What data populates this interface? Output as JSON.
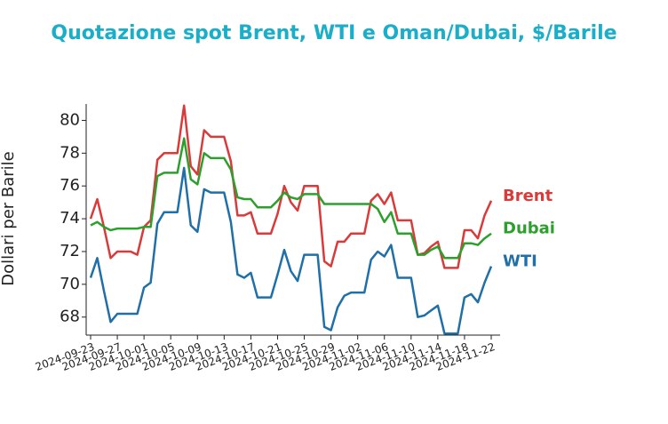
{
  "chart_data": {
    "type": "line",
    "title": "Quotazione spot Brent, WTI e Oman/Dubai, $/Barile",
    "y_label": "Dollari per Barile",
    "x": [
      "2024-09-23",
      "2024-09-24",
      "2024-09-25",
      "2024-09-26",
      "2024-09-27",
      "2024-09-28",
      "2024-09-29",
      "2024-09-30",
      "2024-10-01",
      "2024-10-02",
      "2024-10-03",
      "2024-10-04",
      "2024-10-05",
      "2024-10-06",
      "2024-10-07",
      "2024-10-08",
      "2024-10-09",
      "2024-10-10",
      "2024-10-11",
      "2024-10-12",
      "2024-10-13",
      "2024-10-14",
      "2024-10-15",
      "2024-10-16",
      "2024-10-17",
      "2024-10-18",
      "2024-10-19",
      "2024-10-20",
      "2024-10-21",
      "2024-10-22",
      "2024-10-23",
      "2024-10-24",
      "2024-10-25",
      "2024-10-26",
      "2024-10-27",
      "2024-10-28",
      "2024-10-29",
      "2024-10-30",
      "2024-10-31",
      "2024-11-01",
      "2024-11-02",
      "2024-11-03",
      "2024-11-04",
      "2024-11-05",
      "2024-11-06",
      "2024-11-07",
      "2024-11-08",
      "2024-11-09",
      "2024-11-10",
      "2024-11-11",
      "2024-11-12",
      "2024-11-13",
      "2024-11-14",
      "2024-11-15",
      "2024-11-16",
      "2024-11-17",
      "2024-11-18",
      "2024-11-19",
      "2024-11-20",
      "2024-11-21",
      "2024-11-22"
    ],
    "xticks": [
      "2024-09-23",
      "2024-09-27",
      "2024-10-01",
      "2024-10-05",
      "2024-10-09",
      "2024-10-13",
      "2024-10-17",
      "2024-10-21",
      "2024-10-25",
      "2024-10-29",
      "2024-11-02",
      "2024-11-06",
      "2024-11-10",
      "2024-11-14",
      "2024-11-18",
      "2024-11-22"
    ],
    "ylim": [
      66.9,
      81.0
    ],
    "yticks": [
      68,
      70,
      72,
      74,
      76,
      78,
      80
    ],
    "grid": false,
    "legend": "end-labels",
    "series": [
      {
        "name": "Brent",
        "color": "#d93a3a",
        "values": [
          74.0,
          75.2,
          73.5,
          71.6,
          72.0,
          72.0,
          72.0,
          71.8,
          73.5,
          73.9,
          77.6,
          78.0,
          78.0,
          78.0,
          80.9,
          77.2,
          76.7,
          79.4,
          79.0,
          79.0,
          79.0,
          77.5,
          74.2,
          74.2,
          74.4,
          73.1,
          73.1,
          73.1,
          74.3,
          76.0,
          75.0,
          74.5,
          76.0,
          76.0,
          76.0,
          71.4,
          71.1,
          72.6,
          72.6,
          73.1,
          73.1,
          73.1,
          75.1,
          75.5,
          74.9,
          75.6,
          73.9,
          73.9,
          73.9,
          71.8,
          71.9,
          72.3,
          72.6,
          71.0,
          71.0,
          71.0,
          73.3,
          73.3,
          72.8,
          74.2,
          75.1
        ]
      },
      {
        "name": "Dubai",
        "color": "#2ca02c",
        "values": [
          73.6,
          73.8,
          73.5,
          73.3,
          73.4,
          73.4,
          73.4,
          73.4,
          73.5,
          73.5,
          76.6,
          76.8,
          76.8,
          76.8,
          78.9,
          76.4,
          76.1,
          78.0,
          77.7,
          77.7,
          77.7,
          77.0,
          75.3,
          75.2,
          75.2,
          74.7,
          74.7,
          74.7,
          75.1,
          75.6,
          75.3,
          75.2,
          75.5,
          75.5,
          75.5,
          74.9,
          74.9,
          74.9,
          74.9,
          74.9,
          74.9,
          74.9,
          74.9,
          74.6,
          73.8,
          74.4,
          73.1,
          73.1,
          73.1,
          71.8,
          71.8,
          72.1,
          72.3,
          71.6,
          71.6,
          71.6,
          72.5,
          72.5,
          72.4,
          72.8,
          73.1
        ]
      },
      {
        "name": "WTI",
        "color": "#1f6fa8",
        "values": [
          70.4,
          71.6,
          69.6,
          67.7,
          68.2,
          68.2,
          68.2,
          68.2,
          69.8,
          70.1,
          73.7,
          74.4,
          74.4,
          74.4,
          77.1,
          73.6,
          73.2,
          75.8,
          75.6,
          75.6,
          75.6,
          73.8,
          70.6,
          70.4,
          70.7,
          69.2,
          69.2,
          69.2,
          70.6,
          72.1,
          70.8,
          70.2,
          71.8,
          71.8,
          71.8,
          67.4,
          67.2,
          68.6,
          69.3,
          69.5,
          69.5,
          69.5,
          71.5,
          72.0,
          71.7,
          72.4,
          70.4,
          70.4,
          70.4,
          68.0,
          68.1,
          68.4,
          68.7,
          67.0,
          67.0,
          67.0,
          69.2,
          69.4,
          68.9,
          70.1,
          71.1
        ]
      }
    ]
  }
}
